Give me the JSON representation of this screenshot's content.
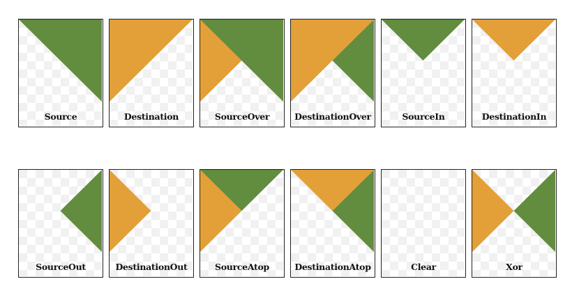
{
  "colors": {
    "source": "#628C3E",
    "destination": "#E39F38",
    "checker_light": "#ffffff",
    "checker_dark": "#f1f1f1",
    "border": "#222222"
  },
  "tiles": [
    {
      "label": "Source",
      "mode": "source"
    },
    {
      "label": "Destination",
      "mode": "destination"
    },
    {
      "label": "SourceOver",
      "mode": "source-over"
    },
    {
      "label": "DestinationOver",
      "mode": "destination-over"
    },
    {
      "label": "SourceIn",
      "mode": "source-in"
    },
    {
      "label": "DestinationIn",
      "mode": "destination-in"
    },
    {
      "label": "SourceOut",
      "mode": "source-out"
    },
    {
      "label": "DestinationOut",
      "mode": "destination-out"
    },
    {
      "label": "SourceAtop",
      "mode": "source-atop"
    },
    {
      "label": "DestinationAtop",
      "mode": "destination-atop"
    },
    {
      "label": "Clear",
      "mode": "clear"
    },
    {
      "label": "Xor",
      "mode": "xor"
    }
  ]
}
